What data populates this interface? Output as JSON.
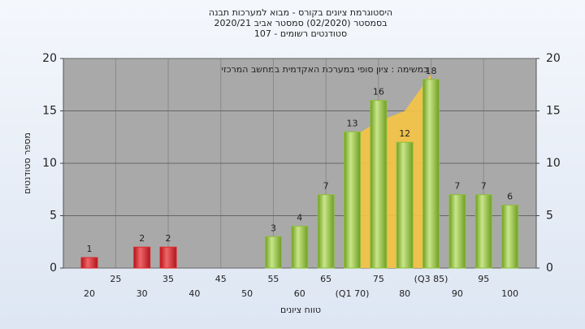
{
  "chart_data": {
    "type": "bar",
    "title": "היסטוגרמת ציונים בקורס - מבוא למערכות תבנה",
    "subtitle": "בסמסטר  (02/2020)  סמסטר אביב  2020/21",
    "subtitle2": "סטודנטים רשומים - 107",
    "annotation": "במשימה : ציון סופי במערכת האקדמית במחשב המרכזי",
    "x_label": "טווח ציונים",
    "y_label": "מספר סטודנטים",
    "categories": [
      "20",
      "25",
      "30",
      "35",
      "40",
      "45",
      "50",
      "55",
      "60",
      "65",
      "(Q1 70)",
      "75",
      "80",
      "(Q3 85)",
      "90",
      "95",
      "100"
    ],
    "values": [
      1,
      null,
      2,
      2,
      null,
      null,
      null,
      3,
      4,
      7,
      13,
      16,
      12,
      18,
      7,
      7,
      6
    ],
    "colors": [
      "#e0262c",
      "#e0262c",
      "#e0262c",
      "#e0262c",
      "#e0262c",
      "#e0262c",
      "#e0262c",
      "#8dbf3a",
      "#8dbf3a",
      "#8dbf3a",
      "#8dbf3a",
      "#8dbf3a",
      "#8dbf3a",
      "#8dbf3a",
      "#8dbf3a",
      "#8dbf3a",
      "#8dbf3a"
    ],
    "iqr_area": {
      "color": "#f6c343",
      "values": [
        null,
        null,
        null,
        null,
        null,
        null,
        null,
        null,
        null,
        null,
        12.5,
        14,
        15,
        18.5,
        null,
        null,
        null
      ]
    },
    "ylim": [
      0,
      20
    ],
    "yticks": [
      0,
      5,
      10,
      15,
      20
    ],
    "grid": true
  }
}
